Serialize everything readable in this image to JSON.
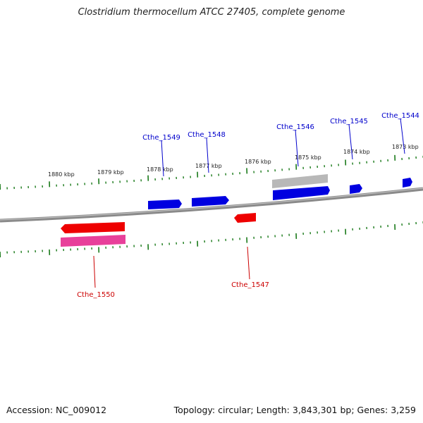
{
  "title": "Clostridium thermocellum ATCC 27405, complete genome",
  "footer": {
    "accession": "Accession: NC_009012",
    "summary": "Topology: circular; Length: 3,843,301 bp; Genes: 3,259"
  },
  "colors": {
    "backbone": "#8a8a8a",
    "ticks": "#1a7a1a",
    "forward_label": "#0000cc",
    "reverse_label": "#cc0000"
  },
  "scale_labels": [
    "1880 kbp",
    "1879 kbp",
    "1878 kbp",
    "1877 kbp",
    "1876 kbp",
    "1875 kbp",
    "1874 kbp",
    "1873 kbp"
  ],
  "genes": [
    {
      "name": "Cthe_1544",
      "strand": "forward"
    },
    {
      "name": "Cthe_1545",
      "strand": "forward"
    },
    {
      "name": "Cthe_1546",
      "strand": "forward"
    },
    {
      "name": "Cthe_1547",
      "strand": "reverse"
    },
    {
      "name": "Cthe_1548",
      "strand": "forward"
    },
    {
      "name": "Cthe_1549",
      "strand": "forward"
    },
    {
      "name": "Cthe_1550",
      "strand": "reverse"
    }
  ]
}
